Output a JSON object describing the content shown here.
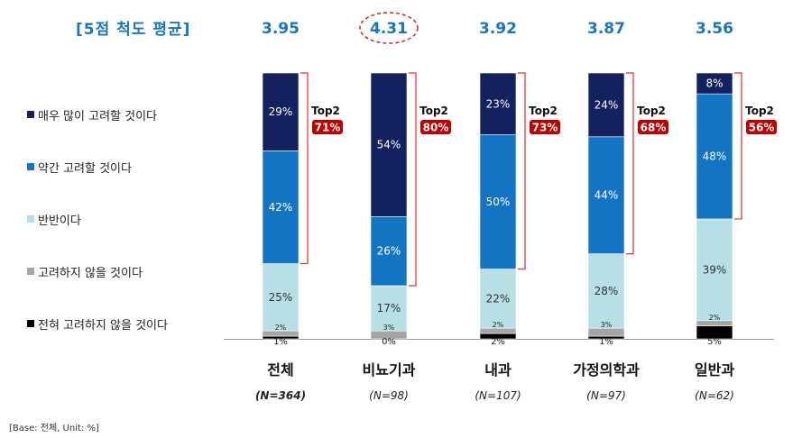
{
  "scale_title": "[5점 척도 평균]",
  "base_note": "[Base: 전체, Unit: %]",
  "colors": {
    "very_much": "#13215e",
    "somewhat": "#1474c4",
    "neutral": "#b6e0e5",
    "not_really": "#a5a5a5",
    "not_at_all": "#000000",
    "mean": "#1b75bb",
    "top2": "#c00000"
  },
  "legend": [
    {
      "label": "매우 많이 고려할 것이다",
      "color": "#13215e"
    },
    {
      "label": "약간 고려할 것이다",
      "color": "#1474c4"
    },
    {
      "label": "반반이다",
      "color": "#b6e0e5"
    },
    {
      "label": "고려하지 않을 것이다",
      "color": "#a5a5a5"
    },
    {
      "label": "전혀 고려하지 않을 것이다",
      "color": "#000000"
    }
  ],
  "chart_data": {
    "type": "bar",
    "stacked": true,
    "categories": [
      "전체",
      "비뇨기과",
      "내과",
      "가정의학과",
      "일반과"
    ],
    "sample_sizes": [
      "(N=364)",
      "(N=98)",
      "(N=107)",
      "(N=97)",
      "(N=62)"
    ],
    "means": [
      "3.95",
      "4.31",
      "3.92",
      "3.87",
      "3.56"
    ],
    "highlighted_mean": "4.31",
    "top2_label": "Top2",
    "top2_values": [
      "71%",
      "80%",
      "73%",
      "68%",
      "56%"
    ],
    "series": [
      {
        "name": "전혀 고려하지 않을 것이다",
        "values": [
          1,
          0,
          2,
          1,
          5
        ]
      },
      {
        "name": "고려하지 않을 것이다",
        "values": [
          2,
          3,
          2,
          3,
          2
        ]
      },
      {
        "name": "반반이다",
        "values": [
          25,
          17,
          22,
          28,
          39
        ]
      },
      {
        "name": "약간 고려할 것이다",
        "values": [
          42,
          26,
          50,
          44,
          48
        ]
      },
      {
        "name": "매우 많이 고려할 것이다",
        "values": [
          29,
          54,
          23,
          24,
          8
        ]
      }
    ],
    "value_labels": [
      [
        "1%",
        "0%",
        "2%",
        "1%",
        "5%"
      ],
      [
        "2%",
        "3%",
        "2%",
        "3%",
        "2%"
      ],
      [
        "25%",
        "17%",
        "22%",
        "28%",
        "39%"
      ],
      [
        "42%",
        "26%",
        "50%",
        "44%",
        "48%"
      ],
      [
        "29%",
        "54%",
        "23%",
        "24%",
        "8%"
      ]
    ],
    "ylim": [
      0,
      100
    ],
    "grid": false,
    "legend_position": "left"
  }
}
